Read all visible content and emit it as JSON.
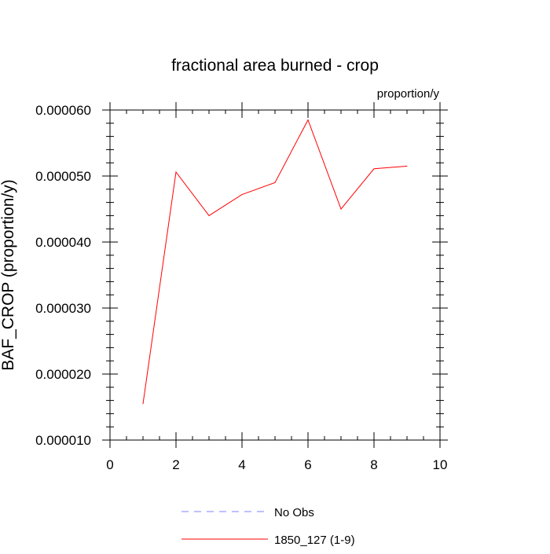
{
  "chart_data": {
    "type": "line",
    "title": "fractional area burned - crop",
    "units_label": "proportion/y",
    "xlabel": "",
    "ylabel": "BAF_CROP  (proportion/y)",
    "xlim": [
      0,
      10
    ],
    "ylim": [
      1e-05,
      6e-05
    ],
    "x_ticks": [
      0,
      2,
      4,
      6,
      8,
      10
    ],
    "x_tick_labels": [
      "0",
      "2",
      "4",
      "6",
      "8",
      "10"
    ],
    "y_ticks": [
      1e-05,
      2e-05,
      3e-05,
      4e-05,
      5e-05,
      6e-05
    ],
    "y_tick_labels": [
      "0.000010",
      "0.000020",
      "0.000030",
      "0.000040",
      "0.000050",
      "0.000060"
    ],
    "grid": false,
    "legend_position": "bottom-center",
    "series": [
      {
        "name": "No Obs",
        "color": "#8080ff",
        "dash": "dashed",
        "x": [],
        "y": []
      },
      {
        "name": "1850_127 (1-9)",
        "color": "#ff0000",
        "dash": "solid",
        "x": [
          1,
          2,
          3,
          4,
          5,
          6,
          7,
          8,
          9
        ],
        "y": [
          1.55e-05,
          5.06e-05,
          4.4e-05,
          4.72e-05,
          4.9e-05,
          5.85e-05,
          4.5e-05,
          5.11e-05,
          5.15e-05
        ]
      }
    ]
  }
}
